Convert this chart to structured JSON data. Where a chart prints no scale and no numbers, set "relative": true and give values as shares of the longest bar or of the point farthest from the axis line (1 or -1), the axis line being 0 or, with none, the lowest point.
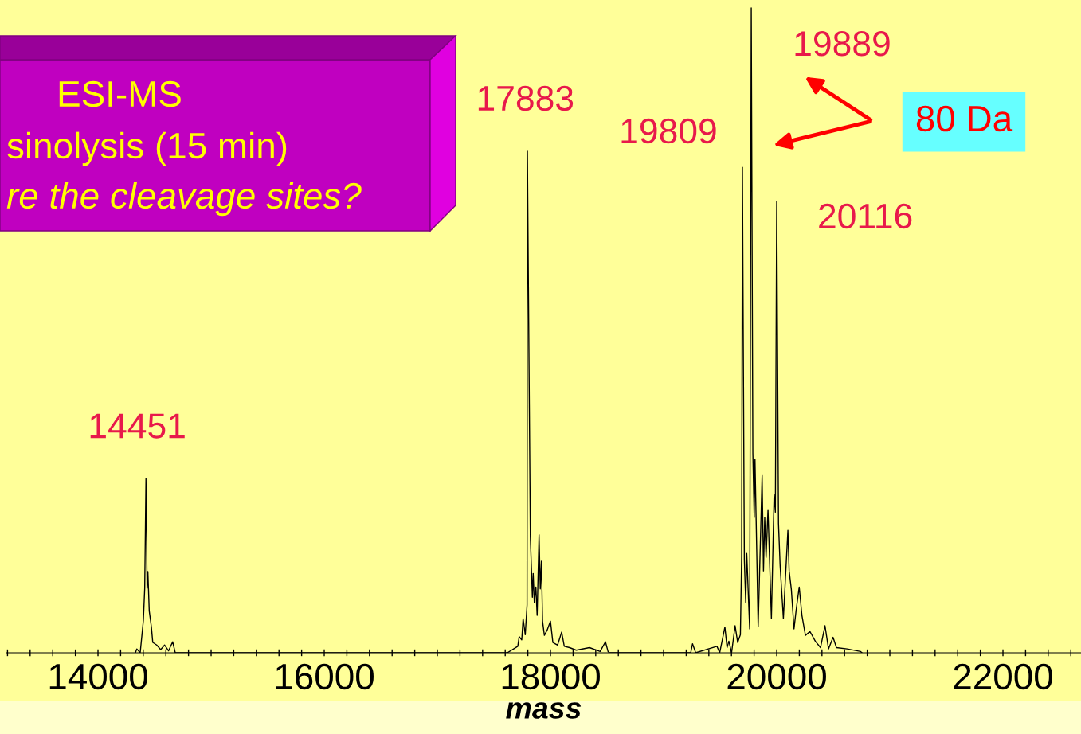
{
  "chart_data": {
    "type": "line",
    "relative": true,
    "title": "ESI-MS",
    "subtitle": "sinolysis (15 min)",
    "xlabel": "mass",
    "xlim": [
      13190,
      22690
    ],
    "xticks": [
      {
        "value": 13200,
        "label": null
      },
      {
        "value": 13400,
        "label": null
      },
      {
        "value": 13600,
        "label": null
      },
      {
        "value": 13800,
        "label": null
      },
      14000,
      {
        "value": 14200,
        "label": null
      },
      {
        "value": 14400,
        "label": null
      },
      {
        "value": 14600,
        "label": null
      },
      {
        "value": 14800,
        "label": null
      },
      {
        "value": 15000,
        "label": null
      },
      {
        "value": 15200,
        "label": null
      },
      {
        "value": 15400,
        "label": null
      },
      {
        "value": 15600,
        "label": null
      },
      {
        "value": 15800,
        "label": null
      },
      16000,
      {
        "value": 16200,
        "label": null
      },
      {
        "value": 16400,
        "label": null
      },
      {
        "value": 16600,
        "label": null
      },
      {
        "value": 16800,
        "label": null
      },
      {
        "value": 17000,
        "label": null
      },
      {
        "value": 17200,
        "label": null
      },
      {
        "value": 17400,
        "label": null
      },
      {
        "value": 17600,
        "label": null
      },
      {
        "value": 17800,
        "label": null
      },
      18000,
      {
        "value": 18200,
        "label": null
      },
      {
        "value": 18400,
        "label": null
      },
      {
        "value": 18600,
        "label": null
      },
      {
        "value": 18800,
        "label": null
      },
      {
        "value": 19000,
        "label": null
      },
      {
        "value": 19200,
        "label": null
      },
      {
        "value": 19400,
        "label": null
      },
      {
        "value": 19600,
        "label": null
      },
      {
        "value": 19800,
        "label": null
      },
      20000,
      {
        "value": 20200,
        "label": null
      },
      {
        "value": 20400,
        "label": null
      },
      {
        "value": 20600,
        "label": null
      },
      {
        "value": 20800,
        "label": null
      },
      {
        "value": 21000,
        "label": null
      },
      {
        "value": 21200,
        "label": null
      },
      {
        "value": 21400,
        "label": null
      },
      {
        "value": 21600,
        "label": null
      },
      {
        "value": 21800,
        "label": null
      },
      22000,
      {
        "value": 22200,
        "label": null
      },
      {
        "value": 22400,
        "label": null
      },
      {
        "value": 22600,
        "label": null
      }
    ],
    "series": [
      {
        "color": "#000000",
        "x": [
          14331,
          14343,
          14373,
          14401,
          14413,
          14424,
          14434,
          14441,
          14453,
          14472,
          14484,
          14519,
          14554,
          14589,
          14624,
          14660,
          14683,
          17618,
          17711,
          17723,
          17746,
          17758,
          17777,
          17793,
          17796,
          17822,
          17840,
          17847,
          17857,
          17871,
          17882,
          17899,
          17910,
          17920,
          17930,
          17946,
          17970,
          18000,
          18021,
          18063,
          18099,
          18122,
          18169,
          18228,
          18345,
          18439,
          18486,
          18509,
          18521,
          19240,
          19256,
          19284,
          19472,
          19496,
          19542,
          19561,
          19577,
          19601,
          19632,
          19655,
          19679,
          19690,
          19697,
          19714,
          19726,
          19735,
          19761,
          19775,
          19789,
          19801,
          19808,
          19836,
          19871,
          19883,
          19894,
          19906,
          19923,
          19953,
          19977,
          19988,
          20000,
          20016,
          20030,
          20059,
          20077,
          20099,
          20110,
          20129,
          20153,
          20171,
          20199,
          20223,
          20254,
          20294,
          20341,
          20387,
          20427,
          20458,
          20498,
          20528,
          20622,
          20742,
          20754
        ],
        "values": [
          0,
          0.006,
          0,
          0.05,
          0.1,
          0.27,
          0.1,
          0.126,
          0.065,
          0.04,
          0.016,
          0.012,
          0.005,
          0.012,
          0.003,
          0.017,
          0,
          0,
          0.01,
          0.025,
          0.02,
          0.053,
          0.028,
          0.074,
          0.778,
          0.18,
          0.086,
          0.123,
          0.078,
          0.102,
          0.058,
          0.183,
          0.099,
          0.142,
          0.049,
          0.027,
          0.035,
          0.049,
          0.016,
          0.012,
          0.032,
          0.01,
          0.008,
          0.004,
          0.008,
          0.002,
          0.017,
          0.002,
          0,
          0,
          0.014,
          0,
          0.01,
          0,
          0.04,
          0.008,
          0.018,
          0,
          0.042,
          0.016,
          0.028,
          0.15,
          0.753,
          0.144,
          0.078,
          0.154,
          0.037,
          1.0,
          0.31,
          0.21,
          0.3,
          0.04,
          0.275,
          0.127,
          0.21,
          0.148,
          0.222,
          0.053,
          0.246,
          0.218,
          0.7,
          0.2,
          0.136,
          0.053,
          0.115,
          0.19,
          0.127,
          0.099,
          0.037,
          0.065,
          0.102,
          0.058,
          0.027,
          0.033,
          0.018,
          0.008,
          0.042,
          0.006,
          0.024,
          0.008,
          0.006,
          0.002,
          0
        ]
      }
    ],
    "marker": "none",
    "line_style": "solid",
    "grid": false,
    "annotations": [
      {
        "text": "14451",
        "x": 14424,
        "y": 0.27
      },
      {
        "text": "17883",
        "x": 17796,
        "y": 0.778
      },
      {
        "text": "19809",
        "x": 19697,
        "y": 0.753
      },
      {
        "text": "19889",
        "x": 19775,
        "y": 1.0
      },
      {
        "text": "20116",
        "x": 20000,
        "y": 0.7
      },
      "80 Da",
      "re the cleavage sites?"
    ]
  }
}
